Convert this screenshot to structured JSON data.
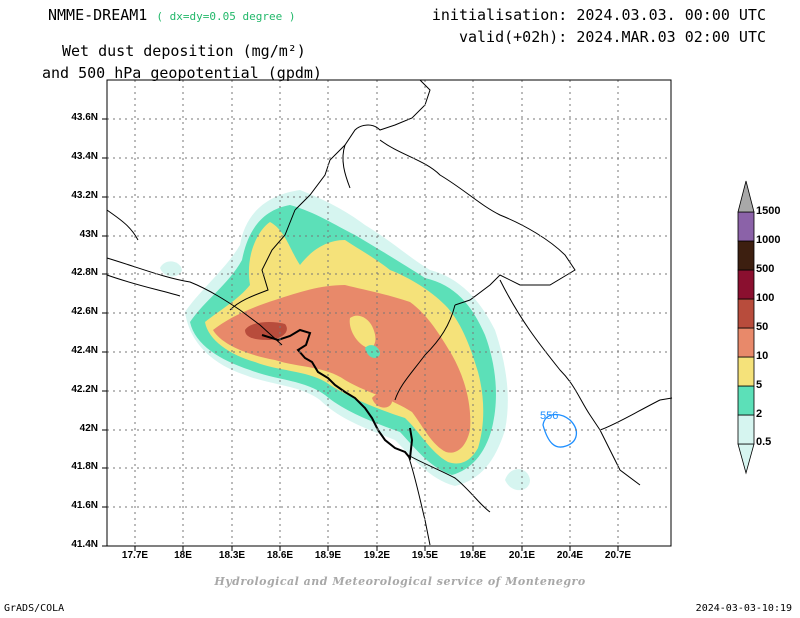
{
  "header": {
    "model": "NMME-DREAM1",
    "resolution": "( dx=dy=0.05 degree )",
    "initialisation": "initialisation: 2024.03.03. 00:00 UTC",
    "valid": "valid(+02h): 2024.MAR.03 02:00 UTC",
    "title_line1": "Wet dust deposition (mg/m²)",
    "title_line2": "and 500 hPa geopotential (gpdm)"
  },
  "map": {
    "lat_labels": [
      "43.6N",
      "43.4N",
      "43.2N",
      "43N",
      "42.8N",
      "42.6N",
      "42.4N",
      "42.2N",
      "42N",
      "41.8N",
      "41.6N",
      "41.4N"
    ],
    "lon_labels": [
      "17.7E",
      "18E",
      "18.3E",
      "18.6E",
      "18.9E",
      "19.2E",
      "19.5E",
      "19.8E",
      "20.1E",
      "20.4E",
      "20.7E"
    ],
    "contour_label": "556",
    "contour_color": "#1e8fff",
    "grid": "dotted"
  },
  "colorbar": {
    "levels": [
      "0.5",
      "2",
      "5",
      "10",
      "50",
      "100",
      "500",
      "1000",
      "1500"
    ],
    "colors": [
      "#d6f5f0",
      "#5ce0b8",
      "#f5e27a",
      "#e8896a",
      "#b84c3c",
      "#8a0f2f",
      "#3d1f10",
      "#8b62a8",
      "#a8a8a8"
    ]
  },
  "footer": {
    "left": "GrADS/COLA",
    "right": "2024-03-03-10:19",
    "credit": "Hydrological and Meteorological service of Montenegro"
  }
}
